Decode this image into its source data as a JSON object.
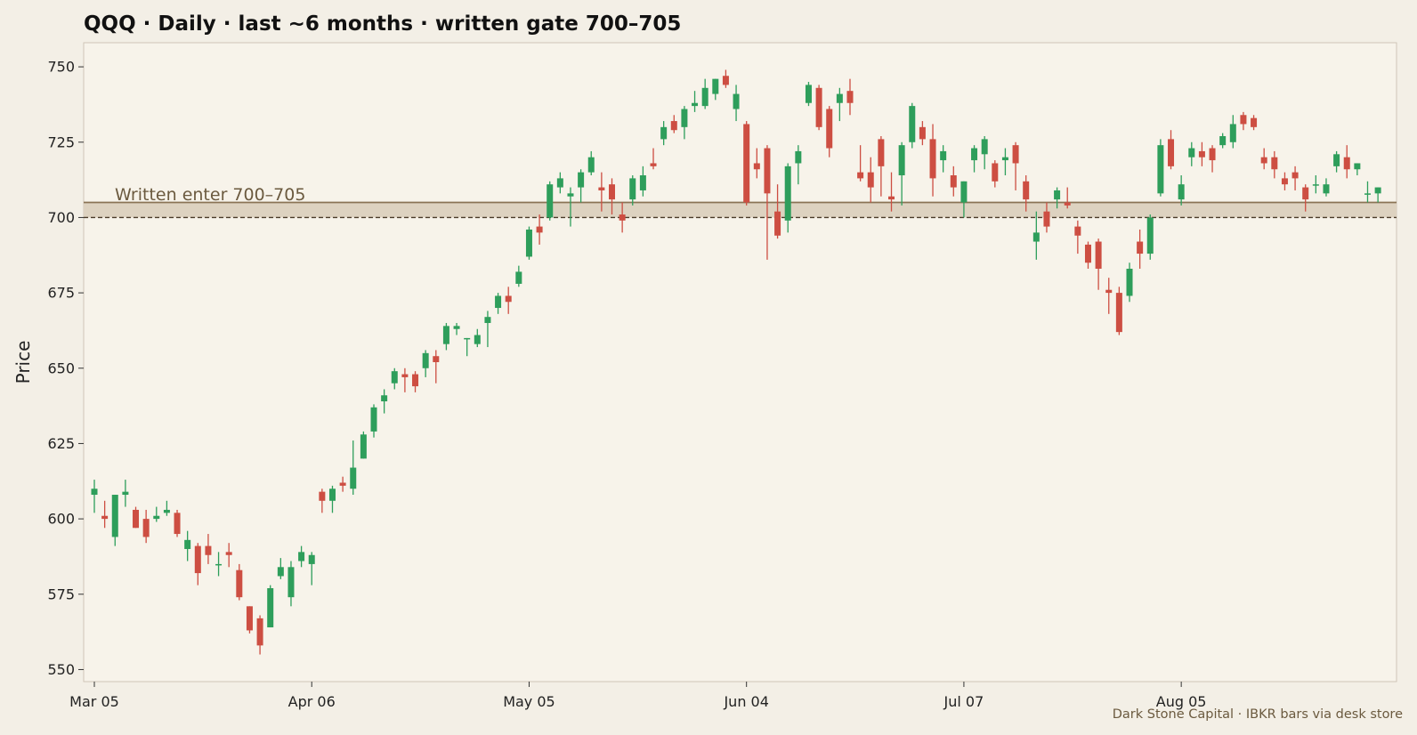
{
  "chart_data": {
    "type": "candlestick",
    "title": "QQQ · Daily · last ~6 months · written gate 700–705",
    "ylabel": "Price",
    "ylim": [
      546,
      758
    ],
    "yticks": [
      550,
      575,
      600,
      625,
      650,
      675,
      700,
      725,
      750
    ],
    "xticks": [
      {
        "label": "Mar 05",
        "index": 0
      },
      {
        "label": "Apr 06",
        "index": 21
      },
      {
        "label": "May 05",
        "index": 42
      },
      {
        "label": "Jun 04",
        "index": 63
      },
      {
        "label": "Jul 07",
        "index": 84
      },
      {
        "label": "Aug 05",
        "index": 105
      }
    ],
    "zone": {
      "low": 700,
      "high": 705,
      "label": "Written enter 700–705"
    },
    "footer": "Dark Stone Capital · IBKR bars via desk store",
    "colors": {
      "up": "#2e9e5b",
      "down": "#cd4e42",
      "zone_fill": "#ddd2c0",
      "zone_line": "#8a7355",
      "background": "#f7f3ea"
    },
    "candles": [
      [
        608,
        613,
        602,
        610
      ],
      [
        601,
        606,
        597,
        600
      ],
      [
        594,
        608,
        591,
        608
      ],
      [
        608,
        613,
        604,
        609
      ],
      [
        603,
        604,
        597,
        597
      ],
      [
        600,
        603,
        592,
        594
      ],
      [
        600,
        604,
        599,
        601
      ],
      [
        602,
        606,
        601,
        603
      ],
      [
        602,
        603,
        594,
        595
      ],
      [
        590,
        596,
        586,
        593
      ],
      [
        591,
        592,
        578,
        582
      ],
      [
        591,
        595,
        585,
        588
      ],
      [
        585,
        589,
        581,
        585
      ],
      [
        589,
        592,
        584,
        588
      ],
      [
        583,
        585,
        573,
        574
      ],
      [
        571,
        571,
        562,
        563
      ],
      [
        567,
        568,
        555,
        558
      ],
      [
        564,
        578,
        564,
        577
      ],
      [
        581,
        587,
        580,
        584
      ],
      [
        574,
        586,
        571,
        584
      ],
      [
        586,
        591,
        584,
        589
      ],
      [
        585,
        589,
        578,
        588
      ],
      [
        609,
        610,
        602,
        606
      ],
      [
        606,
        611,
        602,
        610
      ],
      [
        612,
        614,
        609,
        611
      ],
      [
        610,
        626,
        608,
        617
      ],
      [
        620,
        629,
        620,
        628
      ],
      [
        629,
        638,
        627,
        637
      ],
      [
        639,
        643,
        635,
        641
      ],
      [
        645,
        650,
        643,
        649
      ],
      [
        648,
        650,
        642,
        647
      ],
      [
        648,
        649,
        642,
        644
      ],
      [
        650,
        656,
        647,
        655
      ],
      [
        654,
        656,
        645,
        652
      ],
      [
        658,
        665,
        656,
        664
      ],
      [
        663,
        665,
        661,
        664
      ],
      [
        660,
        660,
        654,
        660
      ],
      [
        658,
        663,
        657,
        661
      ],
      [
        665,
        669,
        657,
        667
      ],
      [
        670,
        675,
        668,
        674
      ],
      [
        674,
        677,
        668,
        672
      ],
      [
        678,
        684,
        677,
        682
      ],
      [
        687,
        697,
        686,
        696
      ],
      [
        697,
        701,
        691,
        695
      ],
      [
        700,
        712,
        699,
        711
      ],
      [
        710,
        715,
        708,
        713
      ],
      [
        707,
        710,
        697,
        708
      ],
      [
        710,
        716,
        705,
        715
      ],
      [
        715,
        722,
        714,
        720
      ],
      [
        710,
        715,
        702,
        709
      ],
      [
        711,
        713,
        701,
        706
      ],
      [
        701,
        705,
        695,
        699
      ],
      [
        706,
        714,
        704,
        713
      ],
      [
        709,
        717,
        707,
        714
      ],
      [
        718,
        723,
        716,
        717
      ],
      [
        726,
        732,
        724,
        730
      ],
      [
        732,
        734,
        728,
        729
      ],
      [
        730,
        737,
        726,
        736
      ],
      [
        737,
        742,
        735,
        738
      ],
      [
        737,
        746,
        736,
        743
      ],
      [
        741,
        746,
        739,
        746
      ],
      [
        747,
        749,
        743,
        744
      ],
      [
        736,
        744,
        732,
        741
      ],
      [
        731,
        732,
        704,
        705
      ],
      [
        718,
        723,
        713,
        716
      ],
      [
        723,
        724,
        686,
        708
      ],
      [
        702,
        711,
        693,
        694
      ],
      [
        699,
        718,
        695,
        717
      ],
      [
        718,
        724,
        711,
        722
      ],
      [
        738,
        745,
        737,
        744
      ],
      [
        743,
        744,
        729,
        730
      ],
      [
        736,
        737,
        720,
        723
      ],
      [
        738,
        743,
        732,
        741
      ],
      [
        742,
        746,
        734,
        738
      ],
      [
        715,
        724,
        712,
        713
      ],
      [
        715,
        720,
        705,
        710
      ],
      [
        726,
        727,
        707,
        717
      ],
      [
        707,
        715,
        702,
        706
      ],
      [
        714,
        725,
        704,
        724
      ],
      [
        725,
        738,
        723,
        737
      ],
      [
        730,
        732,
        724,
        726
      ],
      [
        726,
        731,
        707,
        713
      ],
      [
        719,
        724,
        715,
        722
      ],
      [
        714,
        717,
        707,
        710
      ],
      [
        705,
        712,
        700,
        712
      ],
      [
        719,
        724,
        715,
        723
      ],
      [
        721,
        727,
        716,
        726
      ],
      [
        718,
        719,
        710,
        712
      ],
      [
        719,
        723,
        714,
        720
      ],
      [
        724,
        725,
        709,
        718
      ],
      [
        712,
        714,
        702,
        706
      ],
      [
        692,
        702,
        686,
        695
      ],
      [
        702,
        705,
        695,
        697
      ],
      [
        706,
        710,
        703,
        709
      ],
      [
        705,
        710,
        703,
        704
      ],
      [
        697,
        699,
        688,
        694
      ],
      [
        691,
        692,
        683,
        685
      ],
      [
        692,
        693,
        676,
        683
      ],
      [
        676,
        680,
        668,
        675
      ],
      [
        675,
        677,
        661,
        662
      ],
      [
        674,
        685,
        672,
        683
      ],
      [
        692,
        696,
        683,
        688
      ],
      [
        688,
        701,
        686,
        700
      ],
      [
        708,
        726,
        707,
        724
      ],
      [
        726,
        729,
        716,
        717
      ],
      [
        706,
        714,
        704,
        711
      ],
      [
        720,
        725,
        717,
        723
      ],
      [
        722,
        725,
        717,
        720
      ],
      [
        723,
        724,
        715,
        719
      ],
      [
        724,
        728,
        723,
        727
      ],
      [
        725,
        734,
        723,
        731
      ],
      [
        734,
        735,
        729,
        731
      ],
      [
        733,
        734,
        729,
        730
      ],
      [
        720,
        723,
        716,
        718
      ],
      [
        720,
        722,
        713,
        716
      ],
      [
        713,
        715,
        709,
        711
      ],
      [
        715,
        717,
        709,
        713
      ],
      [
        710,
        711,
        702,
        706
      ],
      [
        711,
        714,
        708,
        711
      ],
      [
        708,
        713,
        707,
        711
      ],
      [
        717,
        722,
        715,
        721
      ],
      [
        720,
        724,
        713,
        716
      ],
      [
        716,
        718,
        714,
        718
      ],
      [
        708,
        712,
        705,
        708
      ],
      [
        708,
        710,
        705,
        710
      ]
    ]
  }
}
